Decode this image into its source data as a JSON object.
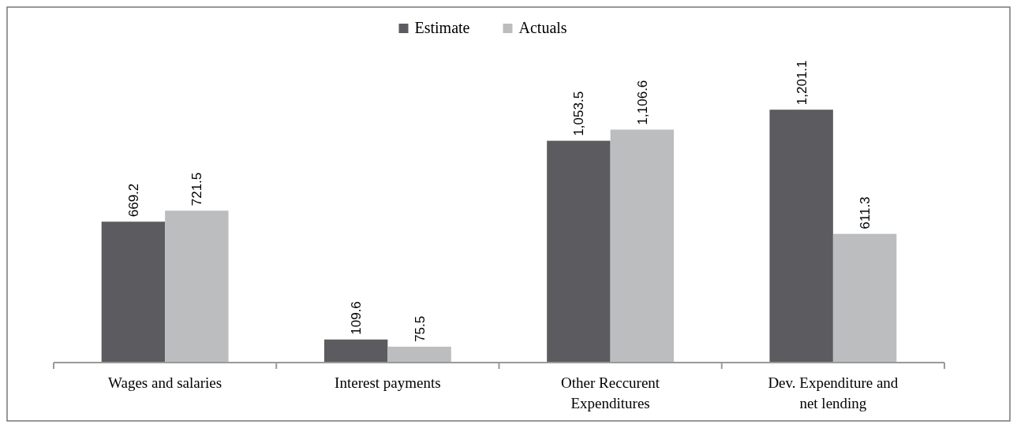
{
  "chart_data": {
    "type": "bar",
    "categories": [
      "Wages and salaries",
      "Interest payments",
      "Other Reccurent Expenditures",
      "Dev. Expenditure and net lending"
    ],
    "series": [
      {
        "name": "Estimate",
        "color": "#5c5c60",
        "values": [
          669.2,
          109.6,
          1053.5,
          1201.1
        ],
        "value_labels": [
          "669.2",
          "109.6",
          "1,053.5",
          "1,201.1"
        ]
      },
      {
        "name": "Actuals",
        "color": "#bcbdbf",
        "values": [
          721.5,
          75.5,
          1106.6,
          611.3
        ],
        "value_labels": [
          "721.5",
          "75.5",
          "1,106.6",
          "611.3"
        ]
      }
    ],
    "legend": "top"
  }
}
